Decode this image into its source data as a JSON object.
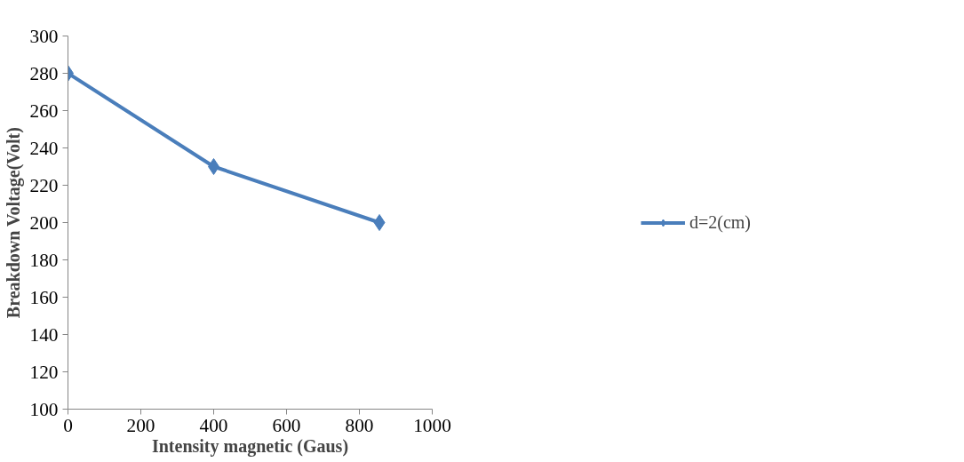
{
  "chart_data": {
    "type": "line",
    "xlabel": "Intensity magnetic (Gaus)",
    "ylabel": "Breakdown Voltage(Volt)",
    "x": [
      0,
      400,
      855
    ],
    "series": [
      {
        "name": "d=2(cm)",
        "color": "#4a7ebb",
        "values": [
          280,
          230,
          200
        ]
      }
    ],
    "xlim": [
      0,
      1000
    ],
    "xticks": [
      0,
      200,
      400,
      600,
      800,
      1000
    ],
    "ylim": [
      100,
      300
    ],
    "yticks": [
      100,
      120,
      140,
      160,
      180,
      200,
      220,
      240,
      260,
      280,
      300
    ],
    "grid": false,
    "legend": "right",
    "marker": "diamond",
    "line_style": "solid"
  }
}
